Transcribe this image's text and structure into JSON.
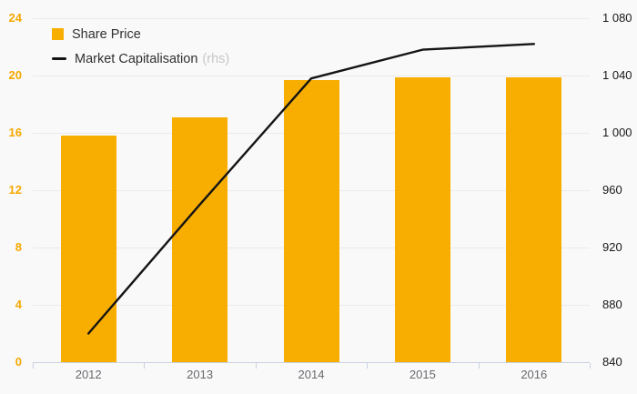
{
  "chart_data": {
    "type": "bar+line combo",
    "categories": [
      "2012",
      "2013",
      "2014",
      "2015",
      "2016"
    ],
    "series": [
      {
        "name": "Share Price",
        "type": "bar",
        "axis": "left",
        "color": "#f8ae00",
        "values": [
          15.8,
          17.1,
          19.7,
          19.9,
          19.9
        ]
      },
      {
        "name": "Market Capitalisation",
        "suffix": "(rhs)",
        "type": "line",
        "axis": "right",
        "color": "#141414",
        "values": [
          860,
          950,
          1038,
          1058,
          1062
        ]
      }
    ],
    "left_axis": {
      "min": 0,
      "max": 24,
      "step": 4,
      "tick_labels": [
        "0",
        "4",
        "8",
        "12",
        "16",
        "20",
        "24"
      ],
      "color": "#f5a800"
    },
    "right_axis": {
      "min": 840,
      "max": 1080,
      "step": 40,
      "tick_labels": [
        "840",
        "880",
        "920",
        "960",
        "1 000",
        "1 040",
        "1 080"
      ],
      "color": "#18181a"
    },
    "title": "",
    "xlabel": "",
    "ylabel": "",
    "grid": true,
    "legend_position": "top-left"
  }
}
